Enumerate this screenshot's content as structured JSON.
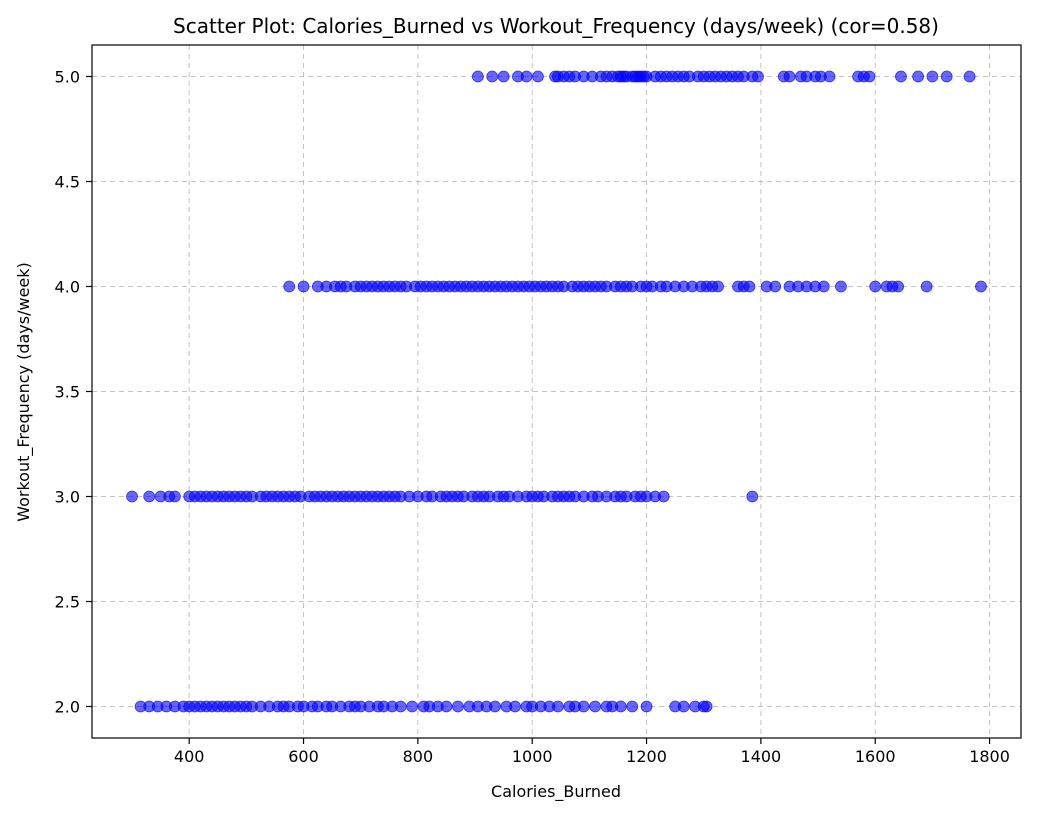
{
  "chart_data": {
    "type": "scatter",
    "title": "Scatter Plot: Calories_Burned vs Workout_Frequency (days/week) (cor=0.58)",
    "xlabel": "Calories_Burned",
    "ylabel": "Workout_Frequency (days/week)",
    "xlim": [
      230,
      1855
    ],
    "ylim": [
      1.85,
      5.15
    ],
    "xticks": [
      400,
      600,
      800,
      1000,
      1200,
      1400,
      1600,
      1800
    ],
    "yticks": [
      2.0,
      2.5,
      3.0,
      3.5,
      4.0,
      4.5,
      5.0
    ],
    "xtick_labels": [
      "400",
      "600",
      "800",
      "1000",
      "1200",
      "1400",
      "1600",
      "1800"
    ],
    "ytick_labels": [
      "2.0",
      "2.5",
      "3.0",
      "3.5",
      "4.0",
      "4.5",
      "5.0"
    ],
    "grid": true,
    "marker_color": "#0000ff",
    "marker_opacity": 0.6,
    "series": [
      {
        "points": [
          [
            905,
            5
          ],
          [
            930,
            5
          ],
          [
            950,
            5
          ],
          [
            975,
            5
          ],
          [
            990,
            5
          ],
          [
            1010,
            5
          ],
          [
            1040,
            5
          ],
          [
            1045,
            5
          ],
          [
            1055,
            5
          ],
          [
            1065,
            5
          ],
          [
            1075,
            5
          ],
          [
            1090,
            5
          ],
          [
            1105,
            5
          ],
          [
            1120,
            5
          ],
          [
            1130,
            5
          ],
          [
            1140,
            5
          ],
          [
            1150,
            5
          ],
          [
            1155,
            5
          ],
          [
            1160,
            5
          ],
          [
            1165,
            5
          ],
          [
            1175,
            5
          ],
          [
            1180,
            5
          ],
          [
            1185,
            5
          ],
          [
            1190,
            5
          ],
          [
            1195,
            5
          ],
          [
            1200,
            5
          ],
          [
            1215,
            5
          ],
          [
            1225,
            5
          ],
          [
            1235,
            5
          ],
          [
            1245,
            5
          ],
          [
            1255,
            5
          ],
          [
            1265,
            5
          ],
          [
            1275,
            5
          ],
          [
            1290,
            5
          ],
          [
            1300,
            5
          ],
          [
            1310,
            5
          ],
          [
            1320,
            5
          ],
          [
            1330,
            5
          ],
          [
            1340,
            5
          ],
          [
            1350,
            5
          ],
          [
            1360,
            5
          ],
          [
            1370,
            5
          ],
          [
            1385,
            5
          ],
          [
            1395,
            5
          ],
          [
            1440,
            5
          ],
          [
            1450,
            5
          ],
          [
            1470,
            5
          ],
          [
            1480,
            5
          ],
          [
            1495,
            5
          ],
          [
            1505,
            5
          ],
          [
            1520,
            5
          ],
          [
            1570,
            5
          ],
          [
            1580,
            5
          ],
          [
            1590,
            5
          ],
          [
            1645,
            5
          ],
          [
            1675,
            5
          ],
          [
            1700,
            5
          ],
          [
            1725,
            5
          ],
          [
            1765,
            5
          ],
          [
            575,
            4
          ],
          [
            600,
            4
          ],
          [
            625,
            4
          ],
          [
            640,
            4
          ],
          [
            655,
            4
          ],
          [
            665,
            4
          ],
          [
            675,
            4
          ],
          [
            690,
            4
          ],
          [
            700,
            4
          ],
          [
            710,
            4
          ],
          [
            720,
            4
          ],
          [
            730,
            4
          ],
          [
            740,
            4
          ],
          [
            750,
            4
          ],
          [
            760,
            4
          ],
          [
            770,
            4
          ],
          [
            780,
            4
          ],
          [
            795,
            4
          ],
          [
            805,
            4
          ],
          [
            815,
            4
          ],
          [
            825,
            4
          ],
          [
            835,
            4
          ],
          [
            845,
            4
          ],
          [
            855,
            4
          ],
          [
            865,
            4
          ],
          [
            875,
            4
          ],
          [
            885,
            4
          ],
          [
            895,
            4
          ],
          [
            905,
            4
          ],
          [
            915,
            4
          ],
          [
            925,
            4
          ],
          [
            935,
            4
          ],
          [
            945,
            4
          ],
          [
            955,
            4
          ],
          [
            965,
            4
          ],
          [
            975,
            4
          ],
          [
            985,
            4
          ],
          [
            995,
            4
          ],
          [
            1005,
            4
          ],
          [
            1015,
            4
          ],
          [
            1025,
            4
          ],
          [
            1035,
            4
          ],
          [
            1045,
            4
          ],
          [
            1055,
            4
          ],
          [
            1070,
            4
          ],
          [
            1080,
            4
          ],
          [
            1090,
            4
          ],
          [
            1100,
            4
          ],
          [
            1110,
            4
          ],
          [
            1120,
            4
          ],
          [
            1130,
            4
          ],
          [
            1145,
            4
          ],
          [
            1155,
            4
          ],
          [
            1165,
            4
          ],
          [
            1175,
            4
          ],
          [
            1190,
            4
          ],
          [
            1200,
            4
          ],
          [
            1210,
            4
          ],
          [
            1225,
            4
          ],
          [
            1235,
            4
          ],
          [
            1250,
            4
          ],
          [
            1265,
            4
          ],
          [
            1280,
            4
          ],
          [
            1295,
            4
          ],
          [
            1305,
            4
          ],
          [
            1315,
            4
          ],
          [
            1325,
            4
          ],
          [
            1360,
            4
          ],
          [
            1370,
            4
          ],
          [
            1380,
            4
          ],
          [
            1410,
            4
          ],
          [
            1425,
            4
          ],
          [
            1450,
            4
          ],
          [
            1465,
            4
          ],
          [
            1480,
            4
          ],
          [
            1495,
            4
          ],
          [
            1510,
            4
          ],
          [
            1540,
            4
          ],
          [
            1600,
            4
          ],
          [
            1620,
            4
          ],
          [
            1630,
            4
          ],
          [
            1640,
            4
          ],
          [
            1690,
            4
          ],
          [
            1785,
            4
          ],
          [
            300,
            3
          ],
          [
            330,
            3
          ],
          [
            350,
            3
          ],
          [
            365,
            3
          ],
          [
            375,
            3
          ],
          [
            400,
            3
          ],
          [
            410,
            3
          ],
          [
            420,
            3
          ],
          [
            430,
            3
          ],
          [
            440,
            3
          ],
          [
            450,
            3
          ],
          [
            460,
            3
          ],
          [
            470,
            3
          ],
          [
            480,
            3
          ],
          [
            490,
            3
          ],
          [
            500,
            3
          ],
          [
            510,
            3
          ],
          [
            525,
            3
          ],
          [
            535,
            3
          ],
          [
            545,
            3
          ],
          [
            555,
            3
          ],
          [
            565,
            3
          ],
          [
            575,
            3
          ],
          [
            585,
            3
          ],
          [
            595,
            3
          ],
          [
            610,
            3
          ],
          [
            620,
            3
          ],
          [
            630,
            3
          ],
          [
            640,
            3
          ],
          [
            650,
            3
          ],
          [
            660,
            3
          ],
          [
            670,
            3
          ],
          [
            680,
            3
          ],
          [
            690,
            3
          ],
          [
            700,
            3
          ],
          [
            710,
            3
          ],
          [
            720,
            3
          ],
          [
            730,
            3
          ],
          [
            740,
            3
          ],
          [
            750,
            3
          ],
          [
            760,
            3
          ],
          [
            770,
            3
          ],
          [
            785,
            3
          ],
          [
            800,
            3
          ],
          [
            815,
            3
          ],
          [
            825,
            3
          ],
          [
            840,
            3
          ],
          [
            850,
            3
          ],
          [
            860,
            3
          ],
          [
            870,
            3
          ],
          [
            880,
            3
          ],
          [
            895,
            3
          ],
          [
            905,
            3
          ],
          [
            915,
            3
          ],
          [
            925,
            3
          ],
          [
            940,
            3
          ],
          [
            950,
            3
          ],
          [
            960,
            3
          ],
          [
            975,
            3
          ],
          [
            990,
            3
          ],
          [
            1000,
            3
          ],
          [
            1010,
            3
          ],
          [
            1020,
            3
          ],
          [
            1035,
            3
          ],
          [
            1045,
            3
          ],
          [
            1055,
            3
          ],
          [
            1065,
            3
          ],
          [
            1075,
            3
          ],
          [
            1090,
            3
          ],
          [
            1105,
            3
          ],
          [
            1115,
            3
          ],
          [
            1130,
            3
          ],
          [
            1145,
            3
          ],
          [
            1155,
            3
          ],
          [
            1165,
            3
          ],
          [
            1180,
            3
          ],
          [
            1190,
            3
          ],
          [
            1200,
            3
          ],
          [
            1215,
            3
          ],
          [
            1230,
            3
          ],
          [
            1385,
            3
          ],
          [
            315,
            2
          ],
          [
            330,
            2
          ],
          [
            345,
            2
          ],
          [
            360,
            2
          ],
          [
            375,
            2
          ],
          [
            390,
            2
          ],
          [
            400,
            2
          ],
          [
            410,
            2
          ],
          [
            420,
            2
          ],
          [
            430,
            2
          ],
          [
            440,
            2
          ],
          [
            450,
            2
          ],
          [
            460,
            2
          ],
          [
            470,
            2
          ],
          [
            480,
            2
          ],
          [
            490,
            2
          ],
          [
            500,
            2
          ],
          [
            510,
            2
          ],
          [
            525,
            2
          ],
          [
            540,
            2
          ],
          [
            555,
            2
          ],
          [
            565,
            2
          ],
          [
            575,
            2
          ],
          [
            590,
            2
          ],
          [
            600,
            2
          ],
          [
            615,
            2
          ],
          [
            625,
            2
          ],
          [
            640,
            2
          ],
          [
            650,
            2
          ],
          [
            665,
            2
          ],
          [
            680,
            2
          ],
          [
            690,
            2
          ],
          [
            700,
            2
          ],
          [
            715,
            2
          ],
          [
            730,
            2
          ],
          [
            740,
            2
          ],
          [
            755,
            2
          ],
          [
            770,
            2
          ],
          [
            790,
            2
          ],
          [
            810,
            2
          ],
          [
            820,
            2
          ],
          [
            835,
            2
          ],
          [
            850,
            2
          ],
          [
            870,
            2
          ],
          [
            890,
            2
          ],
          [
            905,
            2
          ],
          [
            920,
            2
          ],
          [
            935,
            2
          ],
          [
            955,
            2
          ],
          [
            970,
            2
          ],
          [
            990,
            2
          ],
          [
            1000,
            2
          ],
          [
            1015,
            2
          ],
          [
            1030,
            2
          ],
          [
            1045,
            2
          ],
          [
            1065,
            2
          ],
          [
            1075,
            2
          ],
          [
            1090,
            2
          ],
          [
            1110,
            2
          ],
          [
            1130,
            2
          ],
          [
            1140,
            2
          ],
          [
            1155,
            2
          ],
          [
            1175,
            2
          ],
          [
            1200,
            2
          ],
          [
            1250,
            2
          ],
          [
            1265,
            2
          ],
          [
            1285,
            2
          ],
          [
            1300,
            2
          ],
          [
            1305,
            2
          ]
        ]
      }
    ]
  }
}
